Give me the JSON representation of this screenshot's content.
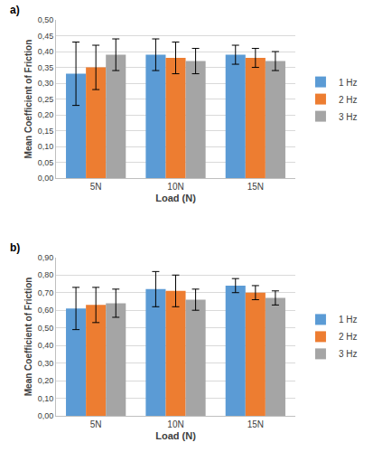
{
  "chart_data": [
    {
      "type": "bar",
      "title": "a)",
      "x_label": "Load (N)",
      "y_label": "Mean Coefficient of Friction",
      "categories": [
        "5N",
        "10N",
        "15N"
      ],
      "series": [
        {
          "name": "1 Hz",
          "color": "#5B9BD5",
          "values": [
            0.33,
            0.39,
            0.39
          ],
          "error": [
            0.1,
            0.05,
            0.03
          ]
        },
        {
          "name": "2 Hz",
          "color": "#ED7D31",
          "values": [
            0.35,
            0.38,
            0.38
          ],
          "error": [
            0.07,
            0.05,
            0.03
          ]
        },
        {
          "name": "3 Hz",
          "color": "#A5A5A5",
          "values": [
            0.39,
            0.37,
            0.37
          ],
          "error": [
            0.05,
            0.04,
            0.03
          ]
        }
      ],
      "ylim": [
        0,
        0.5
      ],
      "yticks": [
        {
          "value": 0,
          "label": "0,00"
        },
        {
          "value": 0.05,
          "label": "0,05"
        },
        {
          "value": 0.1,
          "label": "0,10"
        },
        {
          "value": 0.15,
          "label": "0,15"
        },
        {
          "value": 0.2,
          "label": "0,20"
        },
        {
          "value": 0.25,
          "label": "0,25"
        },
        {
          "value": 0.3,
          "label": "0,30"
        },
        {
          "value": 0.35,
          "label": "0,35"
        },
        {
          "value": 0.4,
          "label": "0,40"
        },
        {
          "value": 0.45,
          "label": "0,45"
        },
        {
          "value": 0.5,
          "label": "0,50"
        }
      ],
      "grid": true,
      "legend": "right"
    },
    {
      "type": "bar",
      "title": "b)",
      "x_label": "Load (N)",
      "y_label": "Mean Coefficient of Friction",
      "categories": [
        "5N",
        "10N",
        "15N"
      ],
      "series": [
        {
          "name": "1 Hz",
          "color": "#5B9BD5",
          "values": [
            0.61,
            0.72,
            0.74
          ],
          "error": [
            0.12,
            0.1,
            0.04
          ]
        },
        {
          "name": "2 Hz",
          "color": "#ED7D31",
          "values": [
            0.63,
            0.71,
            0.7
          ],
          "error": [
            0.1,
            0.09,
            0.04
          ]
        },
        {
          "name": "3 Hz",
          "color": "#A5A5A5",
          "values": [
            0.64,
            0.66,
            0.67
          ],
          "error": [
            0.08,
            0.06,
            0.04
          ]
        }
      ],
      "ylim": [
        0,
        0.9
      ],
      "yticks": [
        {
          "value": 0,
          "label": "0,00"
        },
        {
          "value": 0.1,
          "label": "0,10"
        },
        {
          "value": 0.2,
          "label": "0,20"
        },
        {
          "value": 0.3,
          "label": "0,30"
        },
        {
          "value": 0.4,
          "label": "0,40"
        },
        {
          "value": 0.5,
          "label": "0,50"
        },
        {
          "value": 0.6,
          "label": "0,60"
        },
        {
          "value": 0.7,
          "label": "0,70"
        },
        {
          "value": 0.8,
          "label": "0,80"
        },
        {
          "value": 0.9,
          "label": "0,90"
        }
      ],
      "grid": true,
      "legend": "right"
    }
  ]
}
